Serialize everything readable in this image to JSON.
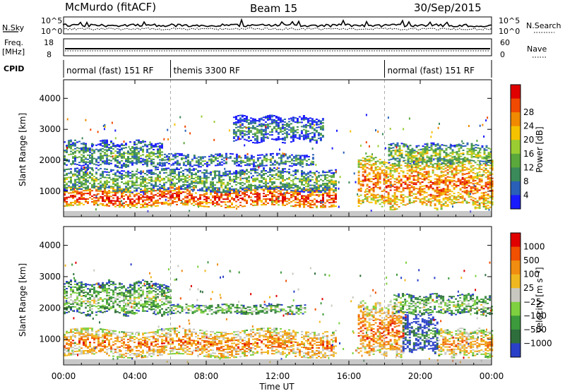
{
  "header": {
    "station": "McMurdo (fitACF)",
    "beam": "Beam 15",
    "date": "30/Sep/2015"
  },
  "strip_labels": {
    "nsky": "N.Sky",
    "nsearch": "N.Search",
    "freq_top": "Freq.",
    "freq_unit": "[MHz]",
    "nave": "Nave",
    "cpid": "CPID",
    "nsky_ticks": [
      "10^5",
      "10^0"
    ],
    "nsearch_ticks": [
      "10^5",
      "10^0"
    ],
    "freq_ticks": [
      "18",
      "8"
    ],
    "nave_ticks": [
      "60",
      "0"
    ]
  },
  "cpid_segments": [
    {
      "label": "normal (fast) 151 RF",
      "start_h": 0,
      "end_h": 6
    },
    {
      "label": "themis 3300 RF",
      "start_h": 6,
      "end_h": 18
    },
    {
      "label": "normal (fast) 151 RF",
      "start_h": 18,
      "end_h": 24
    }
  ],
  "chart_data": [
    {
      "type": "heatmap",
      "title": "Power",
      "xlabel": "Time UT",
      "ylabel": "Slant Range [km]",
      "x_ticks": [
        "00:00",
        "04:00",
        "08:00",
        "12:00",
        "16:00",
        "20:00",
        "00:00"
      ],
      "y_ticks": [
        "1000",
        "2000",
        "3000",
        "4000"
      ],
      "xlim_hours": [
        0,
        24
      ],
      "ylim_km": [
        180,
        4600
      ],
      "colorbar": {
        "label": "Power [dB]",
        "tick_labels": [
          "4",
          "8",
          "12",
          "16",
          "20",
          "24",
          "28"
        ],
        "colors": [
          "#1a1aff",
          "#2a60b8",
          "#3b8a5a",
          "#5aa83c",
          "#9acd32",
          "#f5c200",
          "#f08a00",
          "#f04a00",
          "#e00000"
        ]
      },
      "bands": [
        {
          "start_h": 0.0,
          "end_h": 15.3,
          "range_from_km": 500,
          "range_to_km": 1100,
          "level": 0.92
        },
        {
          "start_h": 0.0,
          "end_h": 15.3,
          "range_from_km": 1000,
          "range_to_km": 1700,
          "level": 0.45
        },
        {
          "start_h": 0.0,
          "end_h": 5.5,
          "range_from_km": 1800,
          "range_to_km": 2600,
          "level": 0.4
        },
        {
          "start_h": 5.5,
          "end_h": 14.0,
          "range_from_km": 1800,
          "range_to_km": 2200,
          "level": 0.35
        },
        {
          "start_h": 9.5,
          "end_h": 14.5,
          "range_from_km": 2600,
          "range_to_km": 3400,
          "level": 0.3
        },
        {
          "start_h": 16.5,
          "end_h": 24.0,
          "range_from_km": 500,
          "range_to_km": 2000,
          "level": 0.82
        },
        {
          "start_h": 18.2,
          "end_h": 24.0,
          "range_from_km": 1900,
          "range_to_km": 2500,
          "level": 0.5
        }
      ]
    },
    {
      "type": "heatmap",
      "title": "Velocity",
      "xlabel": "Time UT",
      "ylabel": "Slant Range [km]",
      "x_ticks": [
        "00:00",
        "04:00",
        "08:00",
        "12:00",
        "16:00",
        "20:00",
        "00:00"
      ],
      "y_ticks": [
        "1000",
        "2000",
        "3000",
        "4000"
      ],
      "xlim_hours": [
        0,
        24
      ],
      "ylim_km": [
        180,
        4600
      ],
      "colorbar": {
        "label": "Velocity [m s⁻¹]",
        "tick_labels": [
          "1000",
          "500",
          "100",
          "25",
          "−25",
          "−100",
          "−500",
          "−1000"
        ],
        "colors": [
          "#2a40c8",
          "#2e6e3c",
          "#3c9a3c",
          "#7ed040",
          "#c8c8c0",
          "#f0b820",
          "#f08c10",
          "#f05000",
          "#e00000"
        ]
      },
      "bands": [
        {
          "start_h": 0.0,
          "end_h": 15.3,
          "range_from_km": 450,
          "range_to_km": 1300,
          "level": 0.78
        },
        {
          "start_h": 0.0,
          "end_h": 6.0,
          "range_from_km": 1800,
          "range_to_km": 2800,
          "level": 0.45
        },
        {
          "start_h": 6.0,
          "end_h": 13.5,
          "range_from_km": 1800,
          "range_to_km": 2100,
          "level": 0.45
        },
        {
          "start_h": 16.5,
          "end_h": 19.0,
          "range_from_km": 500,
          "range_to_km": 2100,
          "level": 0.82
        },
        {
          "start_h": 19.0,
          "end_h": 21.0,
          "range_from_km": 600,
          "range_to_km": 1700,
          "level": 0.2
        },
        {
          "start_h": 18.5,
          "end_h": 24.0,
          "range_from_km": 1800,
          "range_to_km": 2400,
          "level": 0.45
        },
        {
          "start_h": 21.0,
          "end_h": 24.0,
          "range_from_km": 450,
          "range_to_km": 1300,
          "level": 0.72
        }
      ]
    }
  ]
}
